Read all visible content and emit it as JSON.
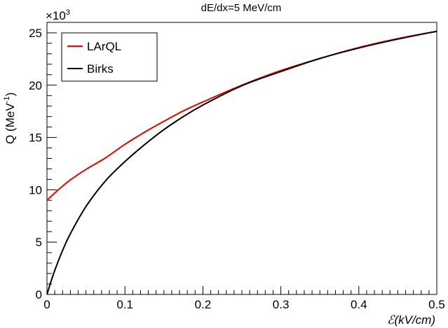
{
  "chart_data": {
    "type": "line",
    "title": "dE/dx=5 MeV/cm",
    "xlabel": "ℰ(kV/cm)",
    "ylabel": "Q (MeV",
    "ylabel_sup": "-1",
    "ylabel_close": ")",
    "y_multiplier": "×10",
    "y_multiplier_exp": "3",
    "xlim": [
      0,
      0.5
    ],
    "ylim": [
      0,
      26
    ],
    "x_ticks": [
      0,
      0.1,
      0.2,
      0.3,
      0.4,
      0.5
    ],
    "x_tick_labels": [
      "0",
      "0.1",
      "0.2",
      "0.3",
      "0.4",
      "0.5"
    ],
    "y_ticks": [
      0,
      5,
      10,
      15,
      20,
      25
    ],
    "y_tick_labels": [
      "0",
      "5",
      "10",
      "15",
      "20",
      "25"
    ],
    "grid": false,
    "legend_position": "top-left",
    "series": [
      {
        "name": "LArQL",
        "color": "#ee0000",
        "x": [
          0,
          0.01,
          0.02,
          0.03,
          0.05,
          0.075,
          0.1,
          0.125,
          0.15,
          0.175,
          0.2,
          0.25,
          0.3,
          0.35,
          0.4,
          0.45,
          0.5
        ],
        "y": [
          9.0,
          9.7,
          10.35,
          10.95,
          11.95,
          13.05,
          14.35,
          15.5,
          16.55,
          17.55,
          18.4,
          20.0,
          21.4,
          22.55,
          23.6,
          24.45,
          25.15
        ]
      },
      {
        "name": "Birks",
        "color": "#000000",
        "x": [
          0,
          0.005,
          0.01,
          0.02,
          0.03,
          0.05,
          0.075,
          0.1,
          0.125,
          0.15,
          0.175,
          0.2,
          0.25,
          0.3,
          0.35,
          0.4,
          0.45,
          0.5
        ],
        "y": [
          0,
          1.2,
          2.3,
          4.2,
          5.8,
          8.4,
          10.85,
          12.7,
          14.3,
          15.75,
          17.0,
          18.1,
          19.95,
          21.3,
          22.55,
          23.55,
          24.4,
          25.15
        ]
      }
    ]
  }
}
